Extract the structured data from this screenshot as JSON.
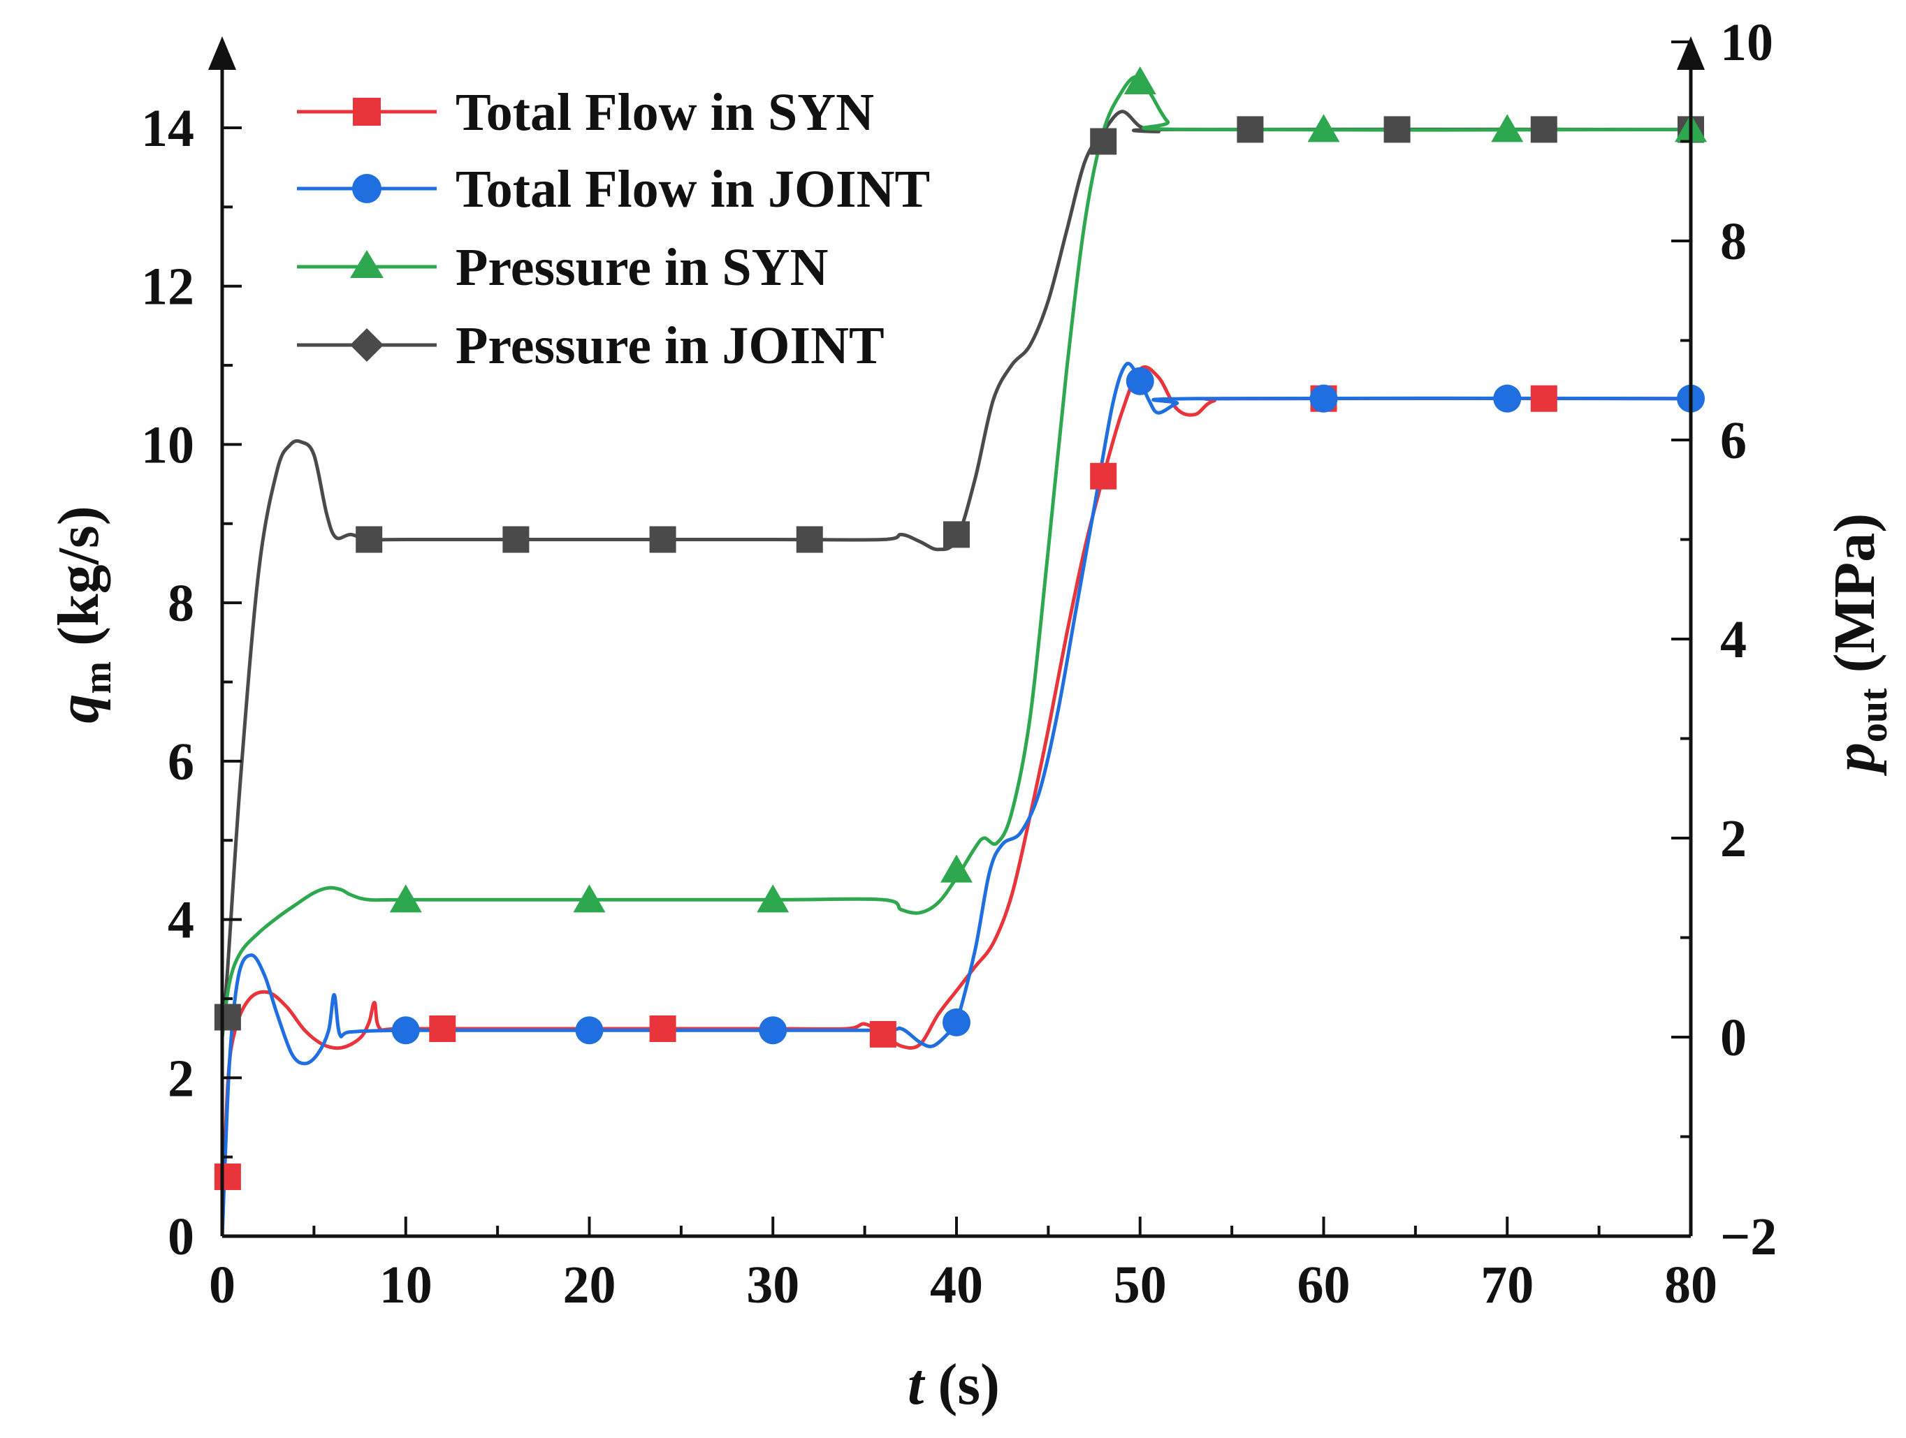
{
  "chart_data": {
    "type": "line",
    "x": {
      "label_var": "t",
      "label_unit": "(s)",
      "range": [
        0,
        80
      ],
      "ticks": [
        0,
        10,
        20,
        30,
        40,
        50,
        60,
        70,
        80
      ]
    },
    "y_left": {
      "label_var": "q",
      "label_sub": "m",
      "label_unit": "(kg/s)",
      "range": [
        0,
        14.5
      ],
      "ticks": [
        0,
        2,
        4,
        6,
        8,
        10,
        12,
        14
      ]
    },
    "y_right": {
      "label_var": "p",
      "label_sub": "out",
      "label_unit": "(MPa)",
      "range": [
        -2,
        10
      ],
      "ticks": [
        -2,
        0,
        2,
        4,
        6,
        8,
        10
      ],
      "tick_labels": [
        "−2",
        "0",
        "2",
        "4",
        "6",
        "8",
        "10"
      ]
    },
    "series": [
      {
        "name": "Total Flow in SYN",
        "axis": "left",
        "color": "#e8343a",
        "marker": "square",
        "curve": [
          [
            0,
            0
          ],
          [
            0.3,
            1.9
          ],
          [
            0.7,
            2.6
          ],
          [
            1.5,
            3.0
          ],
          [
            2.5,
            3.08
          ],
          [
            3.5,
            2.9
          ],
          [
            4.5,
            2.6
          ],
          [
            5.5,
            2.42
          ],
          [
            6.5,
            2.38
          ],
          [
            7.5,
            2.5
          ],
          [
            8,
            2.7
          ],
          [
            8.3,
            2.95
          ],
          [
            8.6,
            2.62
          ],
          [
            10,
            2.62
          ],
          [
            20,
            2.62
          ],
          [
            30,
            2.62
          ],
          [
            34,
            2.62
          ],
          [
            35,
            2.68
          ],
          [
            36,
            2.55
          ],
          [
            37,
            2.4
          ],
          [
            38,
            2.42
          ],
          [
            39,
            2.8
          ],
          [
            40,
            3.1
          ],
          [
            41,
            3.4
          ],
          [
            42,
            3.7
          ],
          [
            43,
            4.3
          ],
          [
            44,
            5.3
          ],
          [
            45,
            6.4
          ],
          [
            46,
            7.6
          ],
          [
            47,
            8.7
          ],
          [
            48,
            9.6
          ],
          [
            49,
            10.4
          ],
          [
            50,
            10.95
          ],
          [
            51,
            10.85
          ],
          [
            52,
            10.45
          ],
          [
            53,
            10.38
          ],
          [
            54,
            10.55
          ],
          [
            56,
            10.58
          ],
          [
            80,
            10.58
          ]
        ],
        "markers": [
          [
            0.3,
            0.75
          ],
          [
            12,
            2.62
          ],
          [
            24,
            2.62
          ],
          [
            36,
            2.55
          ],
          [
            48,
            9.6
          ],
          [
            60,
            10.58
          ],
          [
            72,
            10.58
          ]
        ]
      },
      {
        "name": "Total Flow in JOINT",
        "axis": "left",
        "color": "#1f6fe0",
        "marker": "circle",
        "curve": [
          [
            0,
            0
          ],
          [
            0.4,
            2.2
          ],
          [
            0.9,
            3.3
          ],
          [
            1.6,
            3.55
          ],
          [
            2.3,
            3.3
          ],
          [
            3,
            2.8
          ],
          [
            3.8,
            2.3
          ],
          [
            4.5,
            2.18
          ],
          [
            5.2,
            2.3
          ],
          [
            5.8,
            2.6
          ],
          [
            6.1,
            3.05
          ],
          [
            6.4,
            2.55
          ],
          [
            7,
            2.58
          ],
          [
            10,
            2.6
          ],
          [
            20,
            2.6
          ],
          [
            30,
            2.6
          ],
          [
            36,
            2.6
          ],
          [
            37,
            2.62
          ],
          [
            38,
            2.45
          ],
          [
            38.7,
            2.4
          ],
          [
            39.5,
            2.55
          ],
          [
            40,
            2.7
          ],
          [
            41,
            3.6
          ],
          [
            41.8,
            4.6
          ],
          [
            42.5,
            4.95
          ],
          [
            43.5,
            5.1
          ],
          [
            44.5,
            5.6
          ],
          [
            45.5,
            6.6
          ],
          [
            46.5,
            7.9
          ],
          [
            47.5,
            9.2
          ],
          [
            48.5,
            10.5
          ],
          [
            49.2,
            11.0
          ],
          [
            49.8,
            10.9
          ],
          [
            50.5,
            10.55
          ],
          [
            51,
            10.4
          ],
          [
            52,
            10.52
          ],
          [
            53,
            10.58
          ],
          [
            80,
            10.58
          ]
        ],
        "markers": [
          [
            10,
            2.6
          ],
          [
            20,
            2.6
          ],
          [
            30,
            2.6
          ],
          [
            40,
            2.7
          ],
          [
            50,
            10.8
          ],
          [
            60,
            10.58
          ],
          [
            70,
            10.58
          ],
          [
            80,
            10.58
          ]
        ]
      },
      {
        "name": "Pressure in SYN",
        "axis": "right",
        "color": "#2ea84f",
        "marker": "triangle",
        "curve": [
          [
            0,
            0
          ],
          [
            0.4,
            0.55
          ],
          [
            1,
            0.85
          ],
          [
            2,
            1.05
          ],
          [
            3,
            1.2
          ],
          [
            4,
            1.33
          ],
          [
            5,
            1.45
          ],
          [
            5.8,
            1.5
          ],
          [
            6.5,
            1.48
          ],
          [
            7,
            1.43
          ],
          [
            8,
            1.38
          ],
          [
            10,
            1.38
          ],
          [
            20,
            1.38
          ],
          [
            30,
            1.38
          ],
          [
            36,
            1.38
          ],
          [
            37,
            1.28
          ],
          [
            38,
            1.25
          ],
          [
            39,
            1.35
          ],
          [
            40,
            1.6
          ],
          [
            41,
            1.9
          ],
          [
            41.5,
            2.0
          ],
          [
            42.2,
            1.95
          ],
          [
            43,
            2.25
          ],
          [
            44,
            3.2
          ],
          [
            45,
            4.9
          ],
          [
            46,
            6.7
          ],
          [
            47,
            8.2
          ],
          [
            48,
            9.1
          ],
          [
            49,
            9.5
          ],
          [
            49.8,
            9.65
          ],
          [
            50.5,
            9.5
          ],
          [
            51.5,
            9.2
          ],
          [
            52.5,
            9.12
          ],
          [
            80,
            9.12
          ]
        ],
        "markers": [
          [
            10,
            1.38
          ],
          [
            20,
            1.38
          ],
          [
            30,
            1.38
          ],
          [
            40,
            1.68
          ],
          [
            50,
            9.6
          ],
          [
            60,
            9.12
          ],
          [
            70,
            9.12
          ],
          [
            80,
            9.12
          ]
        ]
      },
      {
        "name": "Pressure in JOINT",
        "axis": "right",
        "color": "#4a4a4a",
        "marker": "diamond",
        "curve": [
          [
            0,
            0
          ],
          [
            0.3,
            0.7
          ],
          [
            1,
            2.6
          ],
          [
            2,
            4.7
          ],
          [
            3,
            5.7
          ],
          [
            3.7,
            5.95
          ],
          [
            4.3,
            5.98
          ],
          [
            5,
            5.85
          ],
          [
            5.7,
            5.25
          ],
          [
            6.2,
            5.02
          ],
          [
            7,
            5.05
          ],
          [
            8,
            5.0
          ],
          [
            10,
            5.0
          ],
          [
            20,
            5.0
          ],
          [
            30,
            5.0
          ],
          [
            36,
            5.0
          ],
          [
            37,
            5.05
          ],
          [
            38,
            4.98
          ],
          [
            39,
            4.9
          ],
          [
            40,
            5.0
          ],
          [
            41,
            5.6
          ],
          [
            42,
            6.4
          ],
          [
            43,
            6.75
          ],
          [
            44,
            6.95
          ],
          [
            45,
            7.4
          ],
          [
            46,
            8.1
          ],
          [
            47,
            8.8
          ],
          [
            48,
            9.1
          ],
          [
            49,
            9.3
          ],
          [
            50,
            9.15
          ],
          [
            51,
            9.1
          ],
          [
            52,
            9.12
          ],
          [
            80,
            9.12
          ]
        ],
        "markers": [
          [
            0.3,
            0.2
          ],
          [
            8,
            5.0
          ],
          [
            16,
            5.0
          ],
          [
            24,
            5.0
          ],
          [
            32,
            5.0
          ],
          [
            40,
            5.05
          ],
          [
            48,
            9.0
          ],
          [
            56,
            9.12
          ],
          [
            64,
            9.12
          ],
          [
            72,
            9.12
          ],
          [
            80,
            9.12
          ]
        ]
      }
    ]
  }
}
